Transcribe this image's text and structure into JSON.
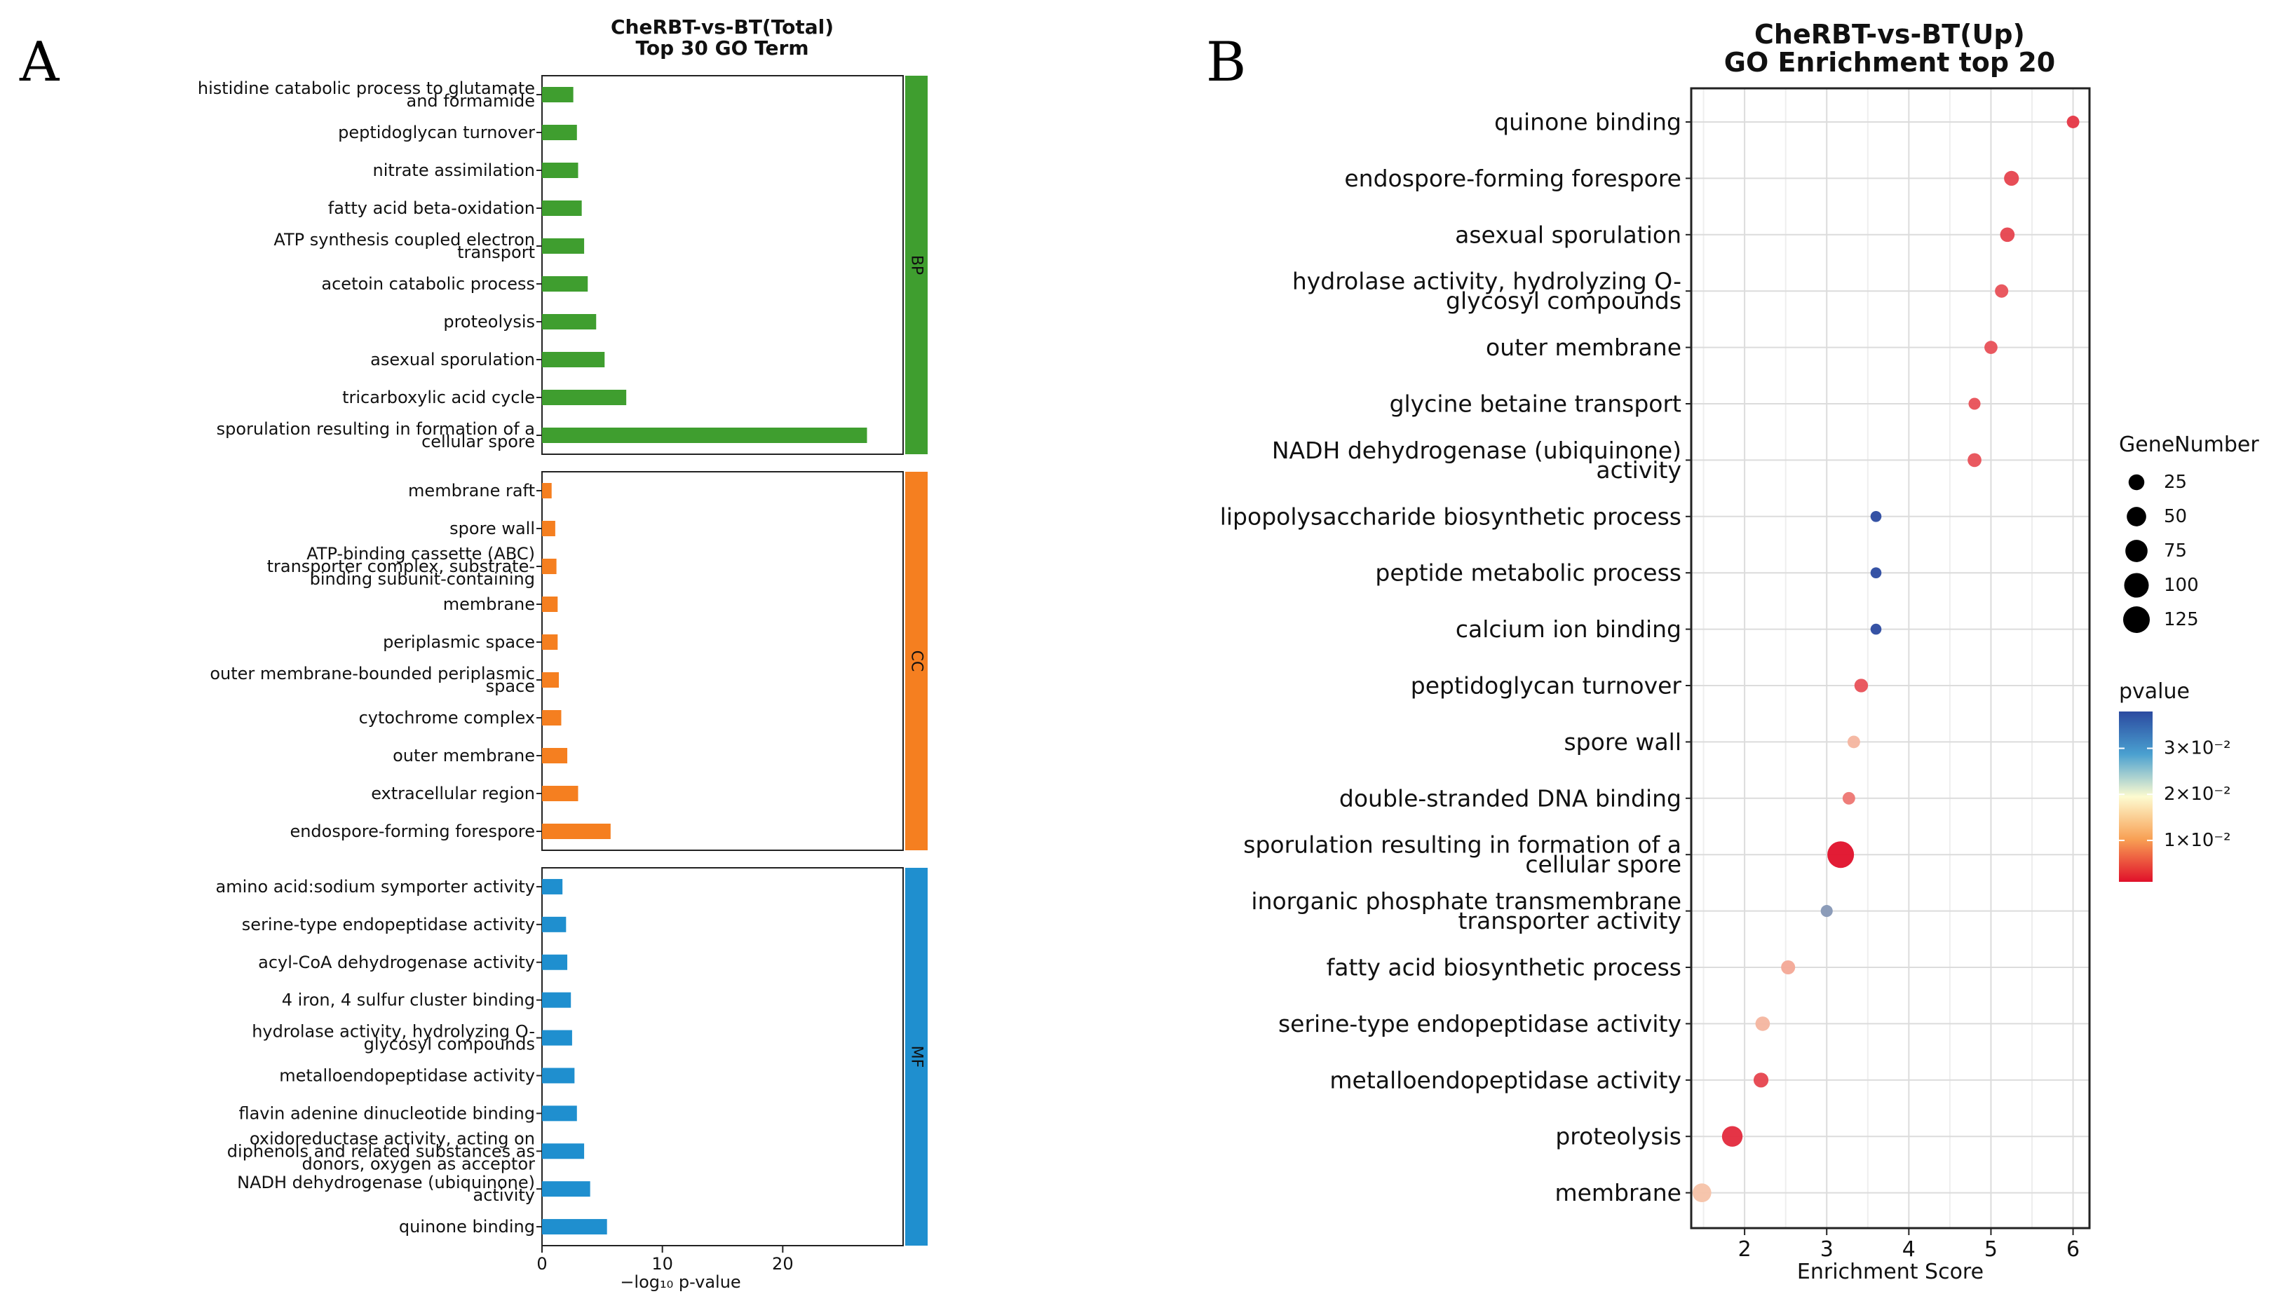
{
  "panels": {
    "a_letter": "A",
    "b_letter": "B"
  },
  "chart_data": [
    {
      "type": "bar",
      "orientation": "horizontal",
      "title": [
        "CheRBT-vs-BT(Total)",
        "Top 30 GO Term"
      ],
      "xlabel": "−log₁₀ p-value",
      "xlim": [
        0,
        30
      ],
      "xticks": [
        "0",
        "10",
        "20"
      ],
      "facets": [
        {
          "label": "BP",
          "color": "#3f9e2f",
          "categories": [
            [
              "histidine catabolic process to glutamate",
              "and formamide"
            ],
            [
              "peptidoglycan turnover"
            ],
            [
              "nitrate assimilation"
            ],
            [
              "fatty acid beta-oxidation"
            ],
            [
              "ATP synthesis coupled electron",
              "transport"
            ],
            [
              "acetoin catabolic process"
            ],
            [
              "proteolysis"
            ],
            [
              "asexual sporulation"
            ],
            [
              "tricarboxylic acid cycle"
            ],
            [
              "sporulation resulting in formation of a",
              "cellular spore"
            ]
          ],
          "values": [
            2.6,
            2.9,
            3.0,
            3.3,
            3.5,
            3.8,
            4.5,
            5.2,
            7.0,
            27.0
          ]
        },
        {
          "label": "CC",
          "color": "#f57f20",
          "categories": [
            [
              "membrane raft"
            ],
            [
              "spore wall"
            ],
            [
              "ATP-binding cassette (ABC)",
              "transporter complex, substrate-",
              "binding subunit-containing"
            ],
            [
              "membrane"
            ],
            [
              "periplasmic space"
            ],
            [
              "outer membrane-bounded periplasmic",
              "space"
            ],
            [
              "cytochrome complex"
            ],
            [
              "outer membrane"
            ],
            [
              "extracellular region"
            ],
            [
              "endospore-forming forespore"
            ]
          ],
          "values": [
            0.8,
            1.1,
            1.2,
            1.3,
            1.3,
            1.4,
            1.6,
            2.1,
            3.0,
            5.7
          ]
        },
        {
          "label": "MF",
          "color": "#1f8fcf",
          "categories": [
            [
              "amino acid:sodium symporter activity"
            ],
            [
              "serine-type endopeptidase activity"
            ],
            [
              "acyl-CoA dehydrogenase activity"
            ],
            [
              "4 iron, 4 sulfur cluster binding"
            ],
            [
              "hydrolase activity, hydrolyzing O-",
              "glycosyl compounds"
            ],
            [
              "metalloendopeptidase activity"
            ],
            [
              "flavin adenine dinucleotide binding"
            ],
            [
              "oxidoreductase activity, acting on",
              "diphenols and related substances as",
              "donors, oxygen as acceptor"
            ],
            [
              "NADH dehydrogenase (ubiquinone)",
              "activity"
            ],
            [
              "quinone binding"
            ]
          ],
          "values": [
            1.7,
            2.0,
            2.1,
            2.4,
            2.5,
            2.7,
            2.9,
            3.5,
            4.0,
            5.4
          ]
        }
      ]
    },
    {
      "type": "scatter",
      "title": [
        "CheRBT-vs-BT(Up)",
        "GO Enrichment top 20"
      ],
      "xlabel": "Enrichment Score",
      "xlim": [
        1.35,
        6.2
      ],
      "xticks": [
        2,
        3,
        4,
        5,
        6
      ],
      "points": [
        {
          "term": [
            "quinone binding"
          ],
          "x": 6.0,
          "p": 0.004,
          "genes": 10
        },
        {
          "term": [
            "endospore-forming forespore"
          ],
          "x": 5.25,
          "p": 0.005,
          "genes": 20
        },
        {
          "term": [
            "asexual sporulation"
          ],
          "x": 5.2,
          "p": 0.005,
          "genes": 18
        },
        {
          "term": [
            "hydrolase activity, hydrolyzing O-",
            "glycosyl compounds"
          ],
          "x": 5.13,
          "p": 0.006,
          "genes": 13
        },
        {
          "term": [
            "outer membrane"
          ],
          "x": 5.0,
          "p": 0.006,
          "genes": 12
        },
        {
          "term": [
            "glycine betaine transport"
          ],
          "x": 4.8,
          "p": 0.006,
          "genes": 8
        },
        {
          "term": [
            "NADH dehydrogenase (ubiquinone)",
            "activity"
          ],
          "x": 4.8,
          "p": 0.006,
          "genes": 15
        },
        {
          "term": [
            "lipopolysaccharide biosynthetic process"
          ],
          "x": 3.6,
          "p": 0.038,
          "genes": 5
        },
        {
          "term": [
            "peptide metabolic process"
          ],
          "x": 3.6,
          "p": 0.038,
          "genes": 5
        },
        {
          "term": [
            "calcium ion binding"
          ],
          "x": 3.6,
          "p": 0.038,
          "genes": 5
        },
        {
          "term": [
            "peptidoglycan turnover"
          ],
          "x": 3.42,
          "p": 0.006,
          "genes": 14
        },
        {
          "term": [
            "spore wall"
          ],
          "x": 3.33,
          "p": 0.014,
          "genes": 10
        },
        {
          "term": [
            "double-stranded DNA binding"
          ],
          "x": 3.27,
          "p": 0.009,
          "genes": 10
        },
        {
          "term": [
            "sporulation resulting in formation of a",
            "cellular spore"
          ],
          "x": 3.17,
          "p": 0.001,
          "genes": 125
        },
        {
          "term": [
            "inorganic phosphate transmembrane",
            "transporter activity"
          ],
          "x": 3.0,
          "p": 0.03,
          "genes": 8
        },
        {
          "term": [
            "fatty acid biosynthetic process"
          ],
          "x": 2.53,
          "p": 0.013,
          "genes": 16
        },
        {
          "term": [
            "serine-type endopeptidase activity"
          ],
          "x": 2.22,
          "p": 0.014,
          "genes": 18
        },
        {
          "term": [
            "metalloendopeptidase activity"
          ],
          "x": 2.2,
          "p": 0.005,
          "genes": 20
        },
        {
          "term": [
            "proteolysis"
          ],
          "x": 1.85,
          "p": 0.003,
          "genes": 60
        },
        {
          "term": [
            "membrane"
          ],
          "x": 1.48,
          "p": 0.015,
          "genes": 45
        }
      ],
      "size_legend": {
        "title": "GeneNumber",
        "values": [
          25,
          50,
          75,
          100,
          125
        ]
      },
      "color_legend": {
        "title": "pvalue",
        "labels": [
          "3×10⁻²",
          "2×10⁻²",
          "1×10⁻²"
        ],
        "ticks": [
          0.03,
          0.02,
          0.01
        ],
        "range": [
          0.001,
          0.038
        ],
        "low_color": "#e0102a",
        "mid_color": "#fdfbd0",
        "high_color": "#2b4aa0"
      }
    }
  ]
}
